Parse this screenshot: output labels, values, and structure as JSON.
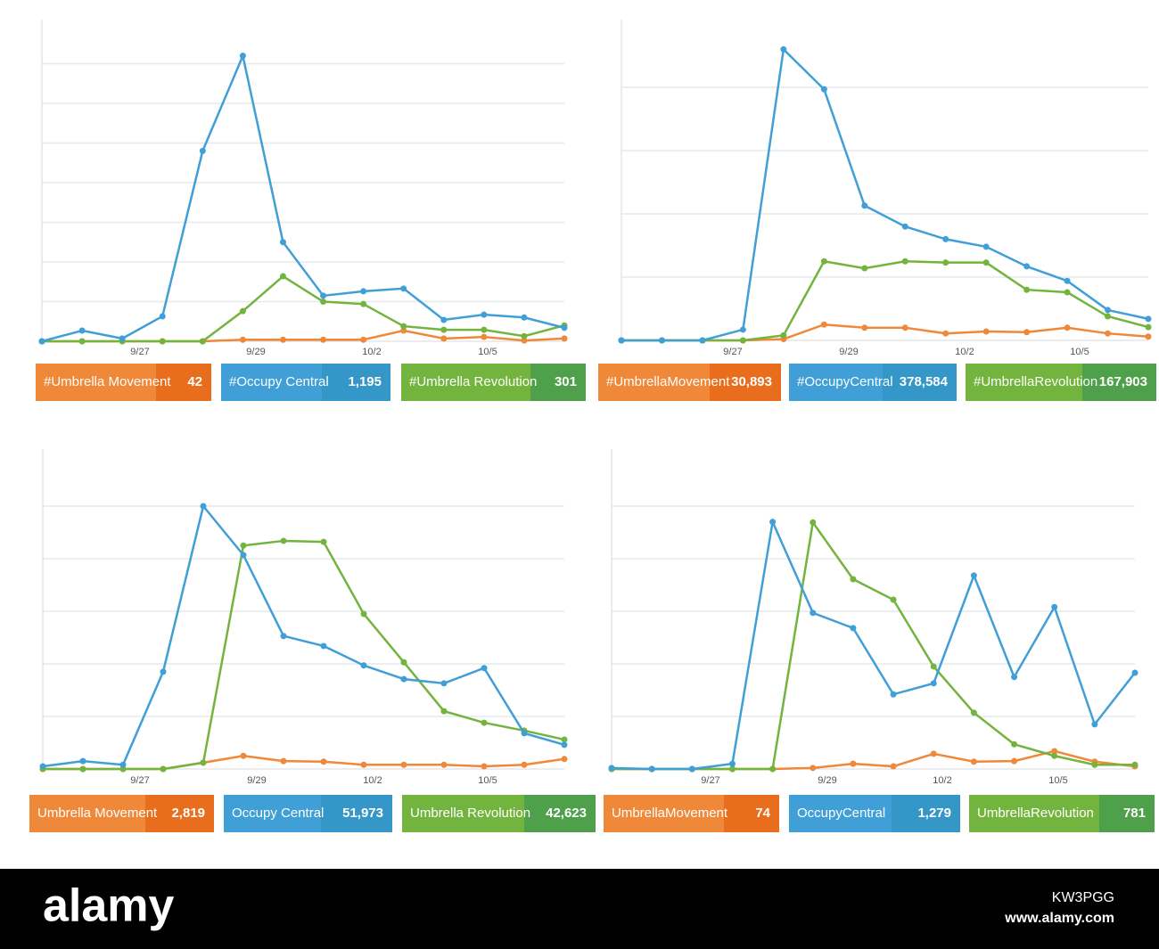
{
  "chart_data": [
    {
      "type": "line",
      "x_labels": [
        "9/27",
        "9/29",
        "10/2",
        "10/5"
      ],
      "ylim": [
        0,
        8
      ],
      "gridlines": [
        1,
        2,
        3,
        4,
        5,
        6,
        7
      ],
      "series": [
        {
          "name": "#Umbrella Movement",
          "color": "#f0883a",
          "value_box_color": "#e86e1e",
          "total": 42,
          "values": [
            0,
            0,
            0,
            0,
            0,
            0.04,
            0.04,
            0.04,
            0.04,
            0.27,
            0.07,
            0.11,
            0.02,
            0.07
          ]
        },
        {
          "name": "#Occupy Central",
          "color": "#3f9fd6",
          "value_box_color": "#3596c8",
          "total": 1195,
          "total_label": "1,195",
          "values": [
            0,
            0.27,
            0.07,
            0.63,
            4.8,
            7.2,
            2.5,
            1.15,
            1.26,
            1.33,
            0.54,
            0.67,
            0.6,
            0.34
          ]
        },
        {
          "name": "#Umbrella Revolution",
          "color": "#73b43e",
          "value_box_color": "#4fa04a",
          "total": 301,
          "values": [
            0,
            0,
            0,
            0,
            0,
            0.76,
            1.64,
            1.0,
            0.94,
            0.38,
            0.29,
            0.29,
            0.13,
            0.4
          ]
        }
      ]
    },
    {
      "type": "line",
      "x_labels": [
        "9/27",
        "9/29",
        "10/2",
        "10/5"
      ],
      "ylim": [
        0,
        5
      ],
      "gridlines": [
        1,
        2,
        3,
        4
      ],
      "series": [
        {
          "name": "#UmbrellaMovement",
          "color": "#f0883a",
          "value_box_color": "#e86e1e",
          "total": 30893,
          "total_label": "30,893",
          "values": [
            0,
            0,
            0,
            0,
            0.02,
            0.25,
            0.2,
            0.2,
            0.11,
            0.14,
            0.13,
            0.2,
            0.11,
            0.06
          ]
        },
        {
          "name": "#OccupyCentral",
          "color": "#3f9fd6",
          "value_box_color": "#3596c8",
          "total": 378584,
          "total_label": "378,584",
          "values": [
            0,
            0,
            0,
            0.17,
            4.6,
            3.97,
            2.13,
            1.8,
            1.6,
            1.48,
            1.17,
            0.94,
            0.48,
            0.34
          ]
        },
        {
          "name": "#UmbrellaRevolution",
          "color": "#73b43e",
          "value_box_color": "#4fa04a",
          "total": 167903,
          "total_label": "167,903",
          "values": [
            0,
            0,
            0,
            0,
            0.08,
            1.25,
            1.14,
            1.25,
            1.23,
            1.23,
            0.8,
            0.76,
            0.38,
            0.21
          ]
        }
      ]
    },
    {
      "type": "line",
      "x_labels": [
        "9/27",
        "9/29",
        "10/2",
        "10/5"
      ],
      "ylim": [
        0,
        6
      ],
      "gridlines": [
        1,
        2,
        3,
        4,
        5
      ],
      "series": [
        {
          "name": "Umbrella Movement",
          "color": "#f0883a",
          "value_box_color": "#e86e1e",
          "total": 2819,
          "total_label": "2,819",
          "values": [
            0,
            0,
            0,
            0,
            0.12,
            0.25,
            0.15,
            0.14,
            0.08,
            0.08,
            0.08,
            0.05,
            0.08,
            0.19
          ]
        },
        {
          "name": "Occupy Central",
          "color": "#3f9fd6",
          "value_box_color": "#3596c8",
          "total": 51973,
          "total_label": "51,973",
          "values": [
            0.05,
            0.15,
            0.08,
            1.85,
            5.0,
            4.07,
            2.53,
            2.34,
            1.97,
            1.71,
            1.63,
            1.92,
            0.68,
            0.46
          ]
        },
        {
          "name": "Umbrella Revolution",
          "color": "#73b43e",
          "value_box_color": "#4fa04a",
          "total": 42623,
          "total_label": "42,623",
          "values": [
            0,
            0,
            0,
            0,
            0.12,
            4.25,
            4.34,
            4.32,
            2.95,
            2.03,
            1.1,
            0.88,
            0.73,
            0.56
          ]
        }
      ]
    },
    {
      "type": "line",
      "x_labels": [
        "9/27",
        "9/29",
        "10/2",
        "10/5"
      ],
      "ylim": [
        0,
        6
      ],
      "gridlines": [
        1,
        2,
        3,
        4,
        5
      ],
      "series": [
        {
          "name": "UmbrellaMovement",
          "color": "#f0883a",
          "value_box_color": "#e86e1e",
          "total": 74,
          "values": [
            0,
            0,
            0,
            0,
            0,
            0.02,
            0.1,
            0.05,
            0.29,
            0.14,
            0.15,
            0.34,
            0.14,
            0.05
          ]
        },
        {
          "name": "OccupyCentral",
          "color": "#3f9fd6",
          "value_box_color": "#3596c8",
          "total": 1279,
          "total_label": "1,279",
          "values": [
            0.02,
            0,
            0,
            0.1,
            4.7,
            2.97,
            2.68,
            1.42,
            1.63,
            3.68,
            1.75,
            3.08,
            0.85,
            1.83
          ]
        },
        {
          "name": "UmbrellaRevolution",
          "color": "#73b43e",
          "value_box_color": "#4fa04a",
          "total": 781,
          "values": [
            0,
            0,
            0,
            0,
            0,
            4.69,
            3.61,
            3.22,
            1.95,
            1.07,
            0.47,
            0.25,
            0.08,
            0.08
          ]
        }
      ]
    }
  ],
  "watermark": {
    "brand": "alamy",
    "code": "KW3PGG",
    "url": "www.alamy.com"
  }
}
